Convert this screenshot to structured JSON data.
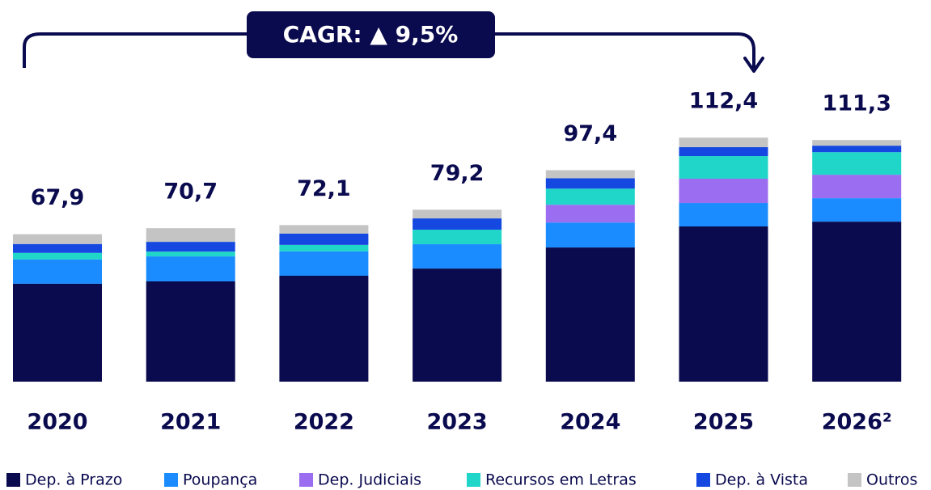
{
  "chart_data": {
    "type": "stacked_bar",
    "annotation": "CAGR: ▲ 9,5%",
    "categories": [
      "2020",
      "2021",
      "2022",
      "2023",
      "2024",
      "2025",
      "2026²"
    ],
    "series": [
      {
        "name": "Dep. à Prazo",
        "color": "#0a0a4f",
        "values": [
          45.1,
          46.2,
          48.8,
          52.1,
          61.8,
          71.5,
          73.7
        ]
      },
      {
        "name": "Poupança",
        "color": "#1a8cff",
        "values": [
          11.2,
          11.5,
          11.2,
          11.2,
          11.5,
          10.8,
          10.8
        ]
      },
      {
        "name": "Dep. Judiciais",
        "color": "#9b6df0",
        "values": [
          0,
          0,
          0,
          0,
          8.2,
          11.2,
          10.8
        ]
      },
      {
        "name": "Recursos em Letras",
        "color": "#1fd6c8",
        "values": [
          3.0,
          2.2,
          3.0,
          6.7,
          7.4,
          10.4,
          10.4
        ]
      },
      {
        "name": "Dep. à Vista",
        "color": "#1448e0",
        "values": [
          4.1,
          4.5,
          5.2,
          5.2,
          4.8,
          4.1,
          3.0
        ]
      },
      {
        "name": "Outros",
        "color": "#c4c4c4",
        "values": [
          4.5,
          6.3,
          3.9,
          4.0,
          3.7,
          4.4,
          2.6
        ]
      }
    ],
    "totals": [
      67.9,
      70.7,
      72.1,
      79.2,
      97.4,
      112.4,
      111.3
    ],
    "total_labels": [
      "67,9",
      "70,7",
      "72,1",
      "79,2",
      "97,4",
      "112,4",
      "111,3"
    ]
  }
}
